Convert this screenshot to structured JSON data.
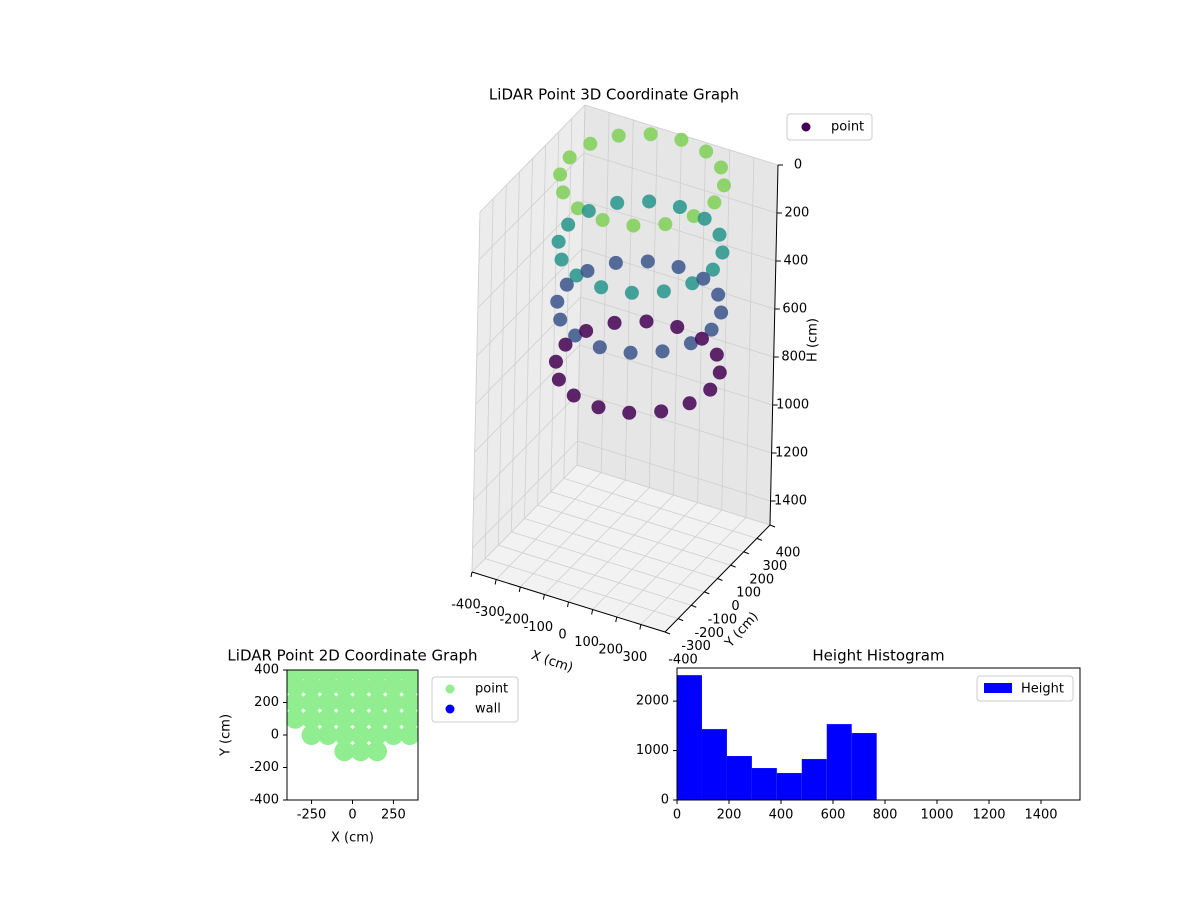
{
  "chart_data": [
    {
      "type": "scatter3d",
      "title": "LiDAR Point 3D Coordinate Graph",
      "xlabel": "X (cm)",
      "ylabel": "Y (cm)",
      "zlabel": "H (cm)",
      "xlim": [
        -400,
        400
      ],
      "ylim": [
        -400,
        400
      ],
      "zlim": [
        0,
        1500
      ],
      "zinverted": true,
      "xticks": [
        -400,
        -300,
        -200,
        -100,
        0,
        100,
        200,
        300
      ],
      "yticks": [
        -400,
        -300,
        -200,
        -100,
        0,
        100,
        200,
        300,
        400
      ],
      "zticks": [
        0,
        200,
        400,
        600,
        800,
        1000,
        1200,
        1400
      ],
      "grid": true,
      "legend": "upper right",
      "series": [
        {
          "name": "point",
          "colormap": "viridis",
          "x": [
            300,
            277,
            212,
            115,
            0,
            -115,
            -212,
            -277,
            -300,
            -277,
            -212,
            -115,
            0,
            115,
            212,
            277,
            300,
            277,
            212,
            115,
            0,
            -115,
            -212,
            -277,
            -300,
            -277,
            -212,
            -115,
            0,
            115,
            212,
            277,
            300,
            277,
            212,
            115,
            0,
            -115,
            -212,
            -277,
            -300,
            -277,
            -212,
            -115,
            0,
            115,
            212,
            277,
            300,
            277,
            212,
            115,
            0,
            -115,
            -212,
            -277,
            -300,
            -277,
            -212,
            -115,
            0,
            115,
            212,
            277
          ],
          "y": [
            100,
            215,
            312,
            377,
            400,
            377,
            312,
            215,
            100,
            -15,
            -112,
            -177,
            -200,
            -177,
            -112,
            -15,
            100,
            215,
            312,
            377,
            400,
            377,
            312,
            215,
            100,
            -15,
            -112,
            -177,
            -200,
            -177,
            -112,
            -15,
            100,
            215,
            312,
            377,
            400,
            377,
            312,
            215,
            100,
            -15,
            -112,
            -177,
            -200,
            -177,
            -112,
            -15,
            100,
            215,
            312,
            377,
            400,
            377,
            312,
            215,
            100,
            -15,
            -112,
            -177,
            -200,
            -177,
            -112,
            -15
          ],
          "z": [
            20,
            20,
            20,
            20,
            20,
            20,
            20,
            20,
            20,
            20,
            20,
            20,
            20,
            20,
            20,
            20,
            300,
            300,
            300,
            300,
            300,
            300,
            300,
            300,
            300,
            300,
            300,
            300,
            300,
            300,
            300,
            300,
            550,
            550,
            550,
            550,
            550,
            550,
            550,
            550,
            550,
            550,
            550,
            550,
            550,
            550,
            550,
            550,
            800,
            800,
            800,
            800,
            800,
            800,
            800,
            800,
            800,
            800,
            800,
            800,
            800,
            800,
            800,
            800
          ]
        }
      ]
    },
    {
      "type": "scatter",
      "title": "LiDAR Point 2D Coordinate Graph",
      "xlabel": "X (cm)",
      "ylabel": "Y (cm)",
      "xlim": [
        -400,
        400
      ],
      "ylim": [
        -400,
        400
      ],
      "xticks": [
        -250,
        0,
        250
      ],
      "yticks": [
        -400,
        -200,
        0,
        200,
        400
      ],
      "legend": "outside upper right",
      "series": [
        {
          "name": "point",
          "color": "#90ee90",
          "x": [
            -50,
            50,
            150,
            -250,
            -150,
            -50,
            50,
            150,
            250,
            350,
            -350,
            -250,
            -150,
            -50,
            50,
            150,
            250,
            350,
            -350,
            -250,
            -150,
            -50,
            50,
            150,
            250,
            350,
            -350,
            -250,
            -150,
            -50,
            50,
            150,
            250,
            350,
            -350,
            -250,
            -150,
            -50,
            50,
            150,
            250,
            350
          ],
          "y": [
            -100,
            -100,
            -100,
            0,
            0,
            0,
            0,
            0,
            0,
            0,
            100,
            100,
            100,
            100,
            100,
            100,
            100,
            100,
            200,
            200,
            200,
            200,
            200,
            200,
            200,
            200,
            300,
            300,
            300,
            300,
            300,
            300,
            300,
            300,
            380,
            380,
            380,
            380,
            380,
            380,
            380,
            380
          ]
        },
        {
          "name": "wall",
          "color": "#0000ff",
          "x": [],
          "y": []
        }
      ]
    },
    {
      "type": "histogram",
      "title": "Height Histogram",
      "bins": [
        0,
        96,
        192,
        288,
        384,
        480,
        576,
        672,
        768
      ],
      "xlim": [
        0,
        1550
      ],
      "ylim": [
        0,
        2670
      ],
      "xticks": [
        0,
        200,
        400,
        600,
        800,
        1000,
        1200,
        1400
      ],
      "yticks": [
        0,
        1000,
        2000
      ],
      "legend": "upper right",
      "series": [
        {
          "name": "Height",
          "color": "#0000ff",
          "values": [
            2525,
            1434,
            889,
            646,
            545,
            828,
            1535,
            1354
          ]
        }
      ]
    }
  ]
}
